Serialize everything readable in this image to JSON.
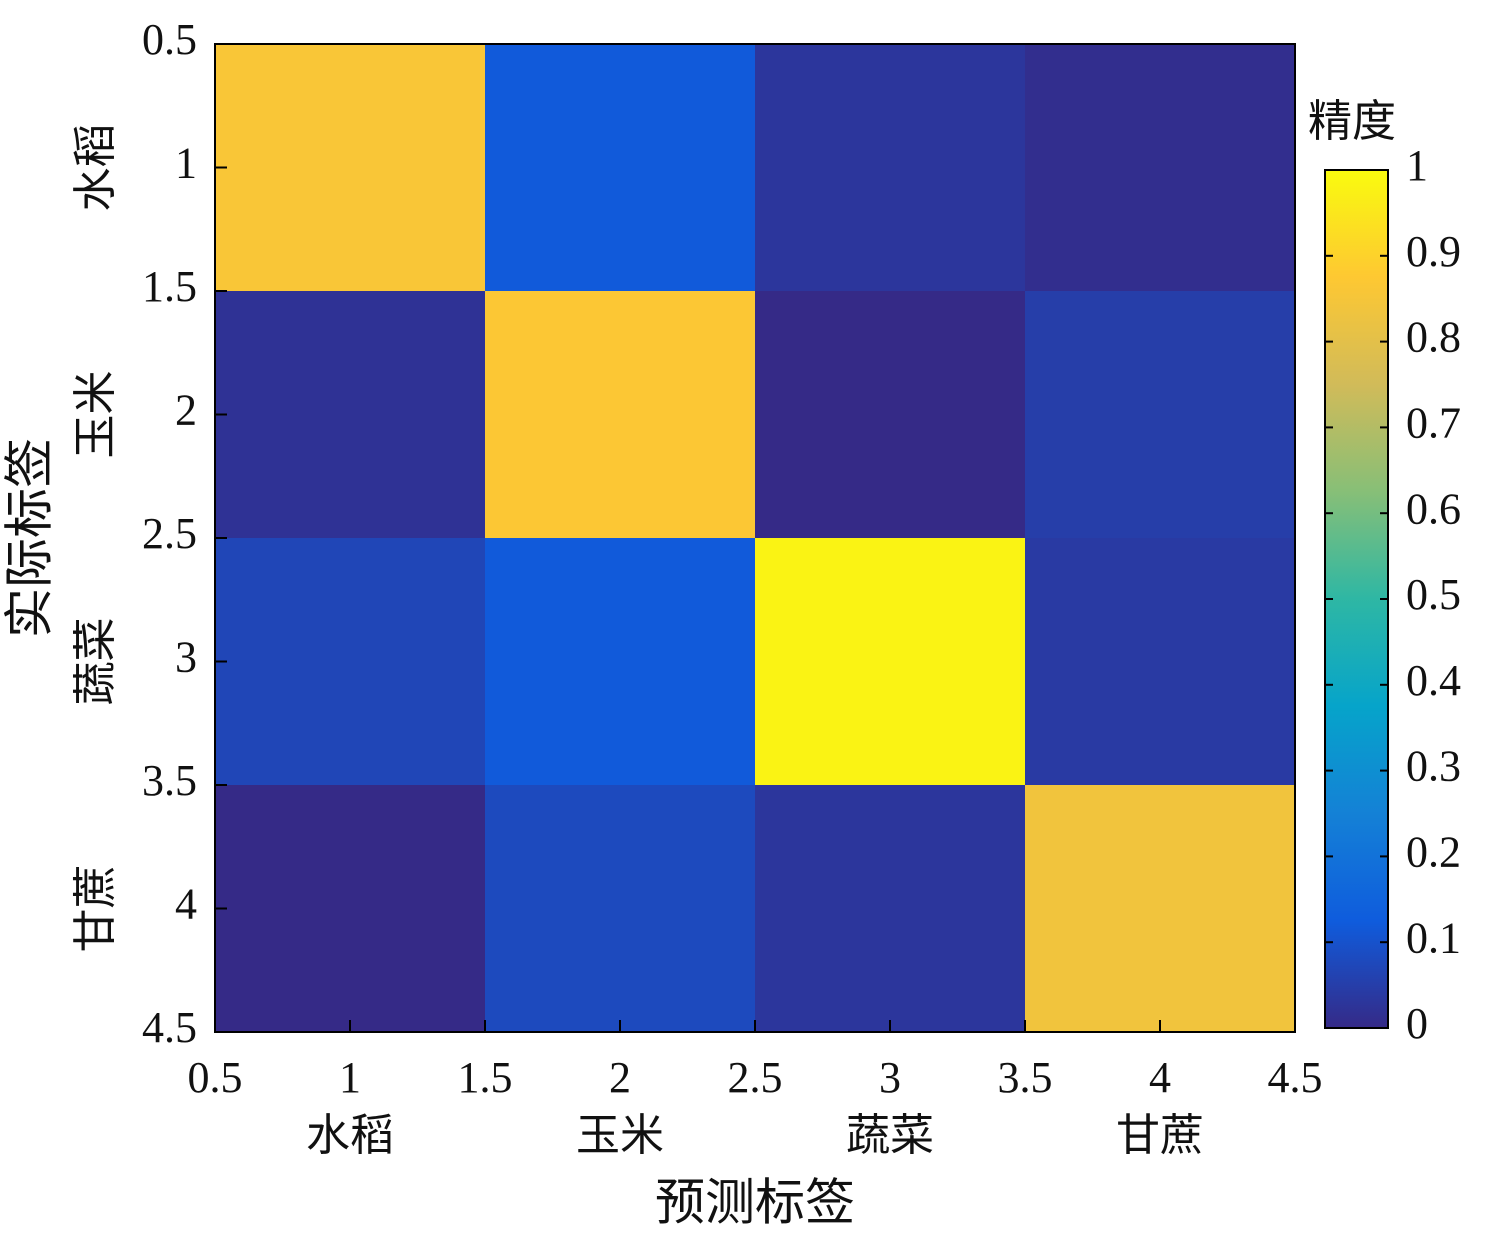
{
  "chart_data": {
    "type": "heatmap",
    "x_categories": [
      "水稻",
      "玉米",
      "蔬菜",
      "甘蔗"
    ],
    "y_categories": [
      "水稻",
      "玉米",
      "蔬菜",
      "甘蔗"
    ],
    "xlabel": "预测标签",
    "ylabel": "实际标签",
    "values": [
      [
        0.86,
        0.12,
        0.03,
        0.01
      ],
      [
        0.02,
        0.87,
        0.0,
        0.05
      ],
      [
        0.07,
        0.12,
        0.98,
        0.04
      ],
      [
        0.0,
        0.08,
        0.03,
        0.84
      ]
    ],
    "xlim": [
      0.5,
      4.5
    ],
    "xticks": [
      0.5,
      1,
      1.5,
      2,
      2.5,
      3,
      3.5,
      4,
      4.5
    ],
    "ylim": [
      0.5,
      4.5
    ],
    "yticks": [
      0.5,
      1,
      1.5,
      2,
      2.5,
      3,
      3.5,
      4,
      4.5
    ],
    "y_reversed": true,
    "colorbar": {
      "title": "精度",
      "lim": [
        0,
        1
      ],
      "ticks": [
        0,
        0.1,
        0.2,
        0.3,
        0.4,
        0.5,
        0.6,
        0.7,
        0.8,
        0.9,
        1
      ]
    },
    "colorscale": [
      "#352a87",
      "#0f5cdd",
      "#1481d6",
      "#06a4ca",
      "#2eb7a4",
      "#87bf77",
      "#d1bb59",
      "#fec832",
      "#f9fb0e"
    ]
  }
}
